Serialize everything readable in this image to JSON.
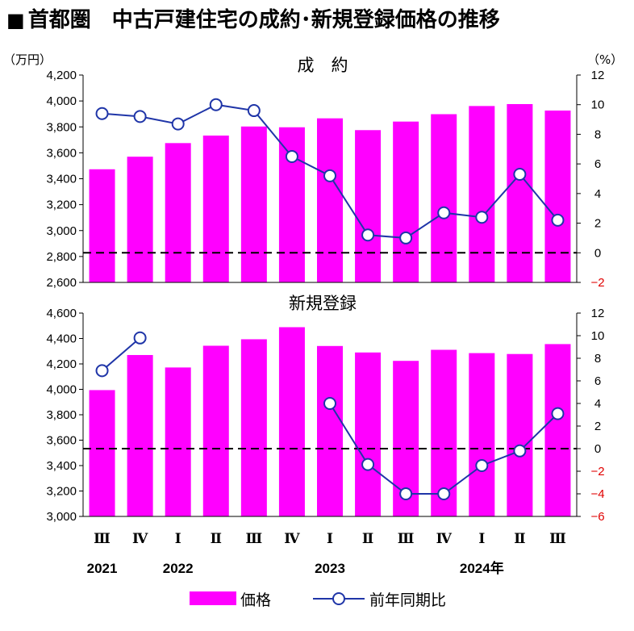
{
  "header": {
    "square": "■",
    "title": "首都圏　中古戸建住宅の成約･新規登録価格の推移"
  },
  "chart_data": {
    "type": "bar",
    "categories": [
      "Ⅲ",
      "Ⅳ",
      "Ⅰ",
      "Ⅱ",
      "Ⅲ",
      "Ⅳ",
      "Ⅰ",
      "Ⅱ",
      "Ⅲ",
      "Ⅳ",
      "Ⅰ",
      "Ⅱ",
      "Ⅲ"
    ],
    "year_labels": [
      {
        "index": 0,
        "label": "2021"
      },
      {
        "index": 2,
        "label": "2022"
      },
      {
        "index": 6,
        "label": "2023"
      },
      {
        "index": 10,
        "label": "2024年"
      }
    ],
    "units": {
      "left": "（万円）",
      "right": "（%）"
    },
    "legend": {
      "bar": "価格",
      "line": "前年同期比",
      "placement": "bottom-center"
    },
    "colors": {
      "bar": "#ff00ff",
      "line": "#1f35a8",
      "marker_fill": "#ffffff",
      "negative_tick": "#e00000"
    },
    "panels": [
      {
        "title": "成　約",
        "ylim_left": [
          2600,
          4200
        ],
        "ytick_step_left": 200,
        "ylim_right": [
          -2,
          12
        ],
        "ytick_step_right": 2,
        "bar_values": [
          3473,
          3570,
          3675,
          3733,
          3803,
          3797,
          3866,
          3775,
          3841,
          3898,
          3961,
          3976,
          3926
        ],
        "line_values": [
          9.4,
          9.2,
          8.7,
          10.0,
          9.6,
          6.5,
          5.2,
          1.2,
          1.0,
          2.7,
          2.4,
          5.3,
          2.2
        ]
      },
      {
        "title": "新規登録",
        "ylim_left": [
          3000,
          4600
        ],
        "ytick_step_left": 200,
        "ylim_right": [
          -6,
          12
        ],
        "ytick_step_right": 2,
        "bar_values": [
          3994,
          4270,
          4172,
          4343,
          4394,
          4489,
          4341,
          4290,
          4224,
          4311,
          4285,
          4278,
          4356
        ],
        "line_values": [
          6.9,
          9.8,
          null,
          null,
          null,
          null,
          4.0,
          -1.4,
          -4.0,
          -4.0,
          -1.5,
          -0.2,
          3.1
        ]
      }
    ]
  }
}
